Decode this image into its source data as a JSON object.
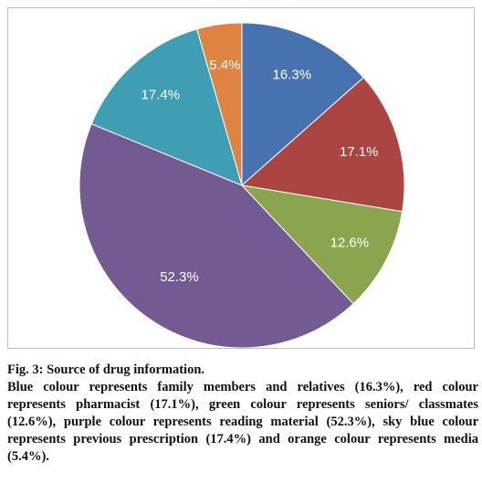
{
  "chart_data": {
    "type": "pie",
    "slices": [
      {
        "label": "16.3%",
        "value": 16.3,
        "color": "#4672b0"
      },
      {
        "label": "17.1%",
        "value": 17.1,
        "color": "#ab4542"
      },
      {
        "label": "12.6%",
        "value": 12.6,
        "color": "#89a54e"
      },
      {
        "label": "52.3%",
        "value": 52.3,
        "color": "#735a93"
      },
      {
        "label": "17.4%",
        "value": 17.4,
        "color": "#3f9db4"
      },
      {
        "label": "5.4%",
        "value": 5.4,
        "color": "#de8341"
      }
    ],
    "start": "12 o'clock",
    "direction": "clockwise",
    "legend": "none"
  },
  "caption": {
    "title": "Fig. 3: Source of drug information.",
    "body": "Blue colour represents family members and relatives (16.3%), red colour represents pharmacist (17.1%), green colour represents seniors/ classmates (12.6%), purple colour represents reading material (52.3%), sky blue colour represents previous prescription (17.4%) and orange colour represents media (5.4%)."
  }
}
